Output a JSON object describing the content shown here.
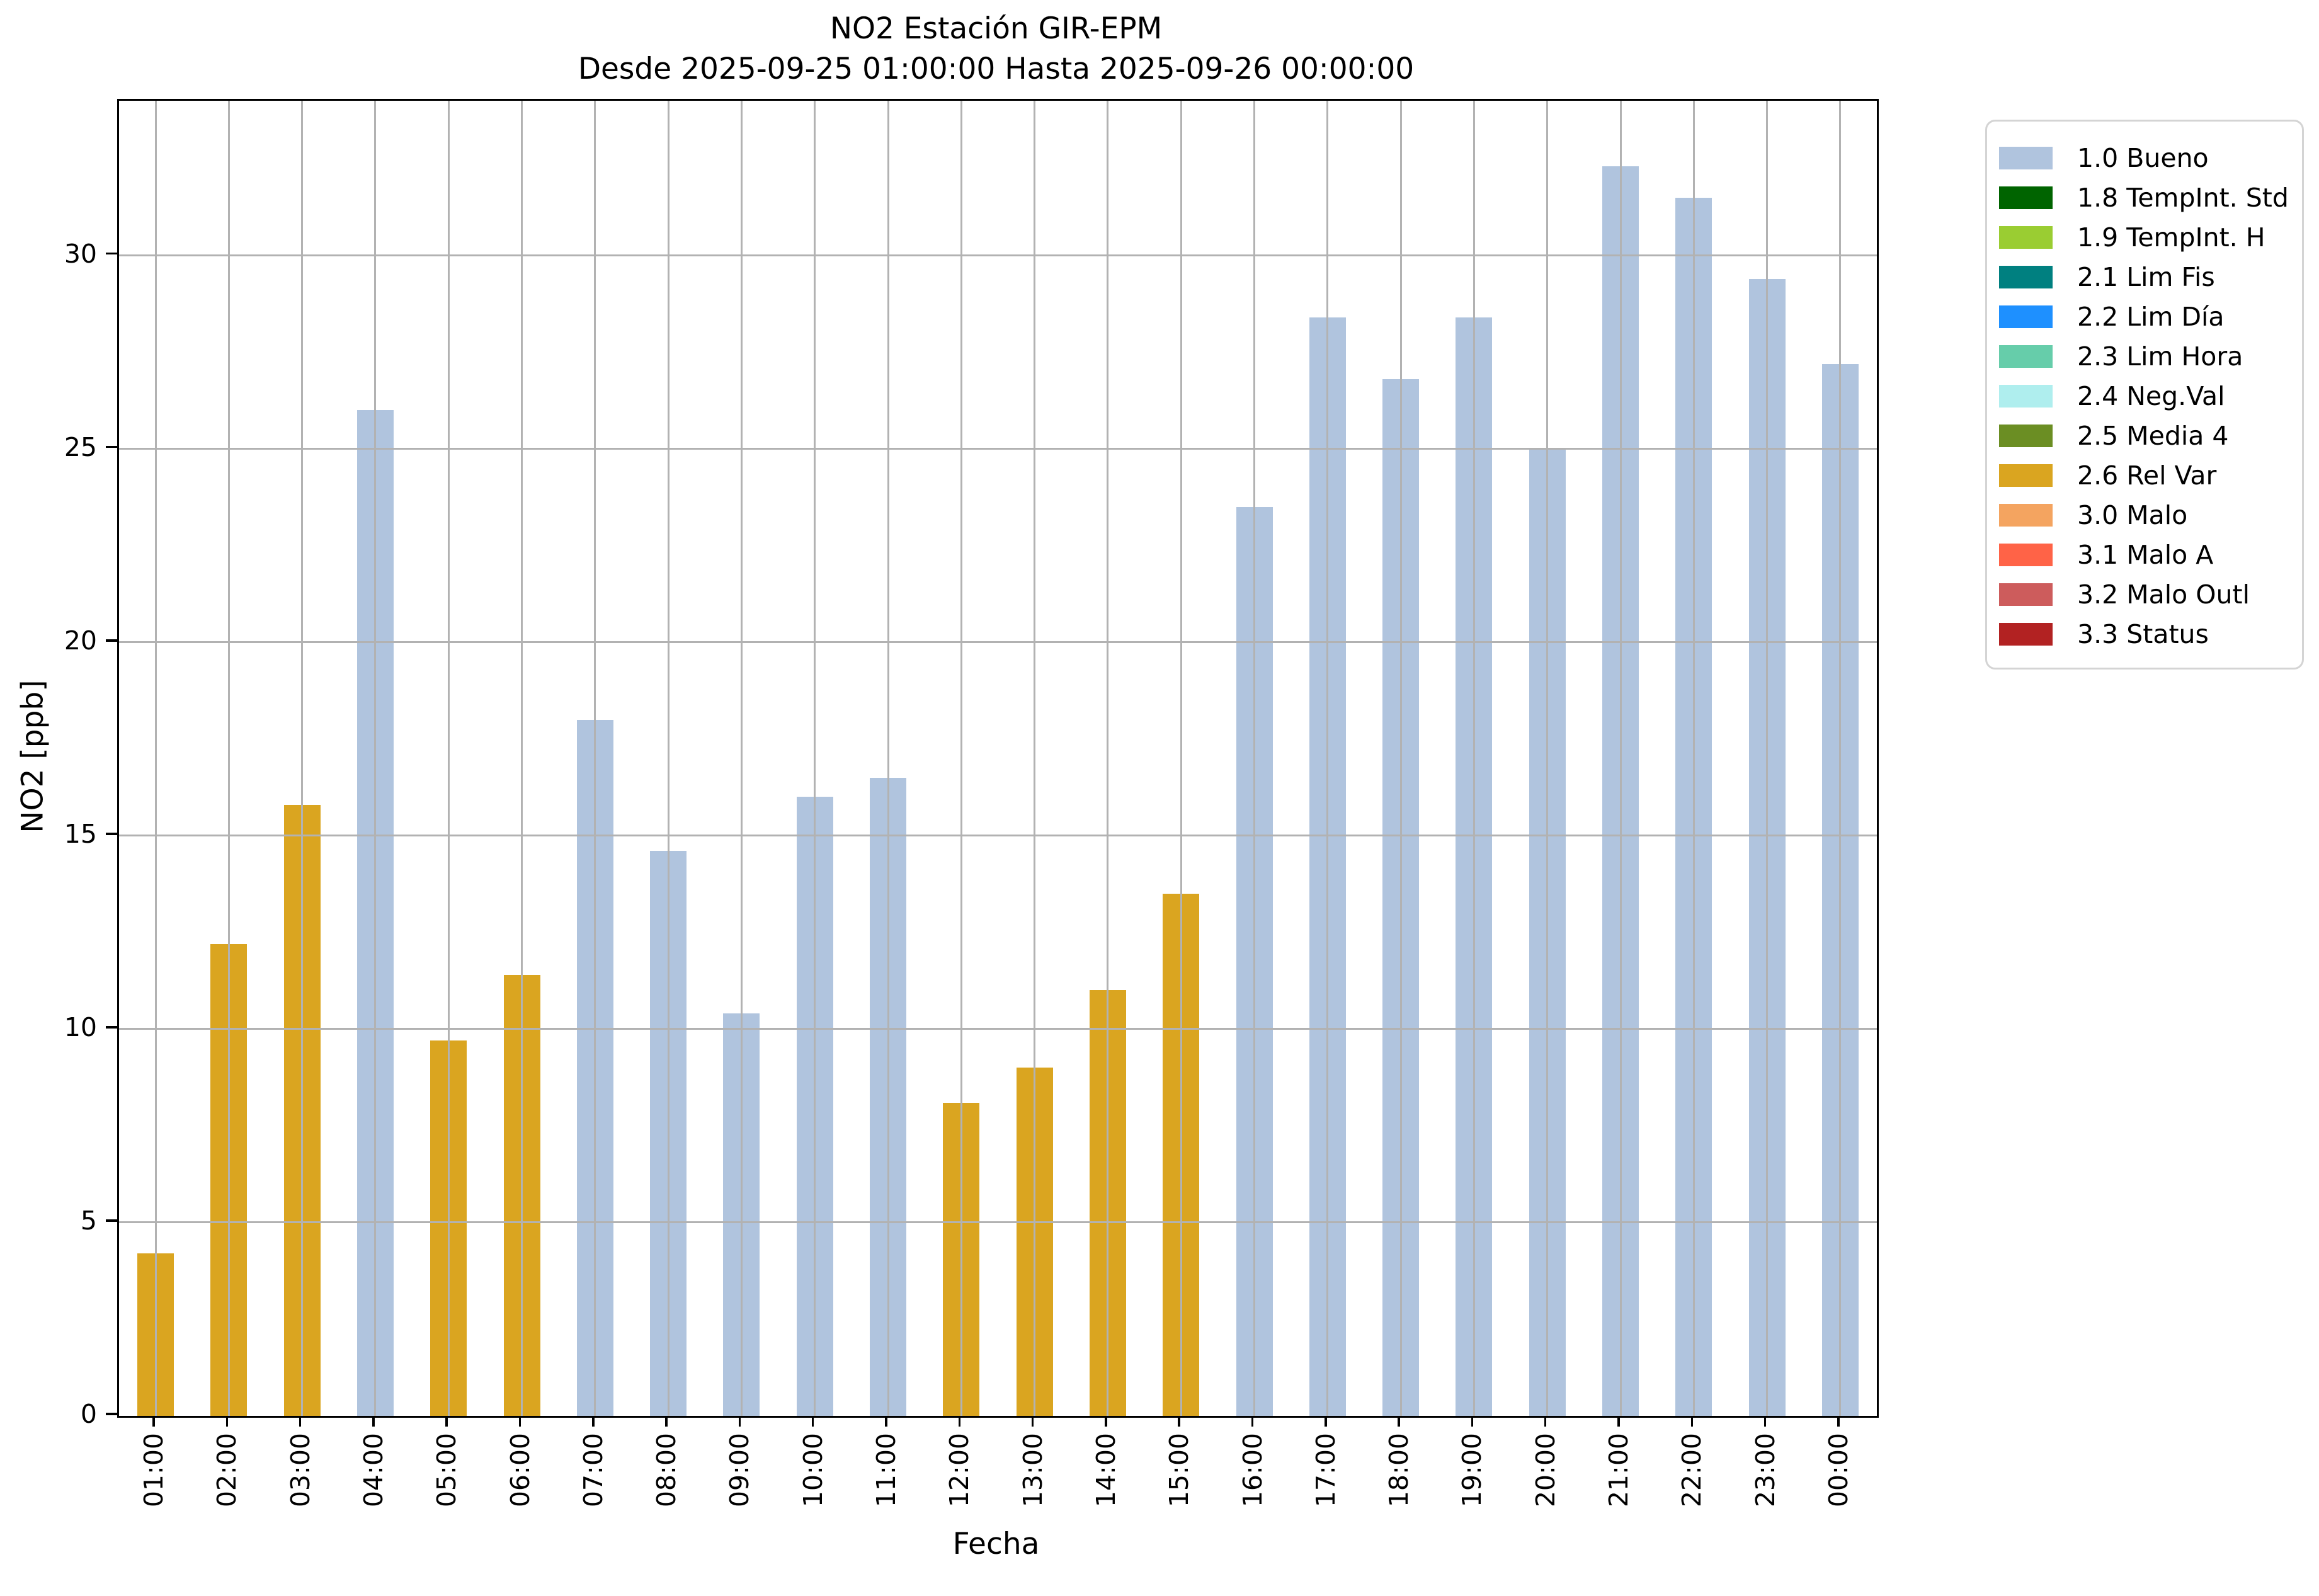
{
  "title": {
    "line1": "NO2 Estación GIR-EPM",
    "line2": "Desde 2025-09-25 01:00:00 Hasta 2025-09-26 00:00:00"
  },
  "axes": {
    "xlabel": "Fecha",
    "ylabel": "NO2 [ppb]",
    "yticks": [
      0,
      5,
      10,
      15,
      20,
      25,
      30
    ]
  },
  "legend": {
    "items": [
      {
        "label": "1.0 Bueno",
        "color": "#b0c4de"
      },
      {
        "label": "1.8 TempInt. Std",
        "color": "#006400"
      },
      {
        "label": "1.9 TempInt. H",
        "color": "#9acd32"
      },
      {
        "label": "2.1 Lim Fis",
        "color": "#008080"
      },
      {
        "label": "2.2 Lim Día",
        "color": "#1e90ff"
      },
      {
        "label": "2.3 Lim Hora",
        "color": "#66cdaa"
      },
      {
        "label": "2.4 Neg.Val",
        "color": "#afeeee"
      },
      {
        "label": "2.5 Media 4",
        "color": "#6b8e23"
      },
      {
        "label": "2.6 Rel Var",
        "color": "#daa520"
      },
      {
        "label": "3.0 Malo",
        "color": "#f4a460"
      },
      {
        "label": "3.1 Malo A",
        "color": "#ff6347"
      },
      {
        "label": "3.2 Malo Outl",
        "color": "#cd5c5c"
      },
      {
        "label": "3.3 Status",
        "color": "#b22222"
      }
    ]
  },
  "chart_data": {
    "type": "bar",
    "title": "NO2 Estación GIR-EPM — Desde 2025-09-25 01:00:00 Hasta 2025-09-26 00:00:00",
    "xlabel": "Fecha",
    "ylabel": "NO2 [ppb]",
    "ylim": [
      0,
      34
    ],
    "grid": true,
    "legend_position": "outside-right",
    "categories": [
      "01:00",
      "02:00",
      "03:00",
      "04:00",
      "05:00",
      "06:00",
      "07:00",
      "08:00",
      "09:00",
      "10:00",
      "11:00",
      "12:00",
      "13:00",
      "14:00",
      "15:00",
      "16:00",
      "17:00",
      "18:00",
      "19:00",
      "20:00",
      "21:00",
      "22:00",
      "23:00",
      "00:00"
    ],
    "values": [
      4.2,
      12.2,
      15.8,
      26.0,
      9.7,
      11.4,
      18.0,
      14.6,
      10.4,
      16.0,
      16.5,
      8.1,
      9.0,
      11.0,
      13.5,
      23.5,
      28.4,
      26.8,
      28.4,
      25.0,
      32.3,
      31.5,
      29.4,
      27.2
    ],
    "bar_flags": [
      "2.6 Rel Var",
      "2.6 Rel Var",
      "2.6 Rel Var",
      "1.0 Bueno",
      "2.6 Rel Var",
      "2.6 Rel Var",
      "1.0 Bueno",
      "1.0 Bueno",
      "1.0 Bueno",
      "1.0 Bueno",
      "1.0 Bueno",
      "2.6 Rel Var",
      "2.6 Rel Var",
      "2.6 Rel Var",
      "2.6 Rel Var",
      "1.0 Bueno",
      "1.0 Bueno",
      "1.0 Bueno",
      "1.0 Bueno",
      "1.0 Bueno",
      "1.0 Bueno",
      "1.0 Bueno",
      "1.0 Bueno",
      "1.0 Bueno"
    ],
    "bar_colors": {
      "1.0 Bueno": "#b0c4de",
      "2.6 Rel Var": "#daa520"
    }
  }
}
